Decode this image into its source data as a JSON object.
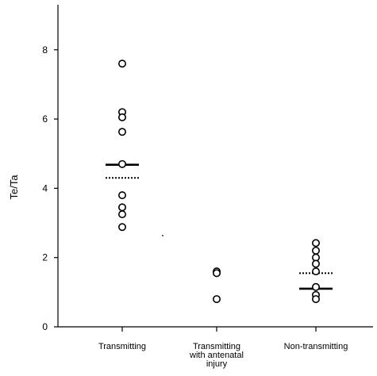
{
  "chart_data": {
    "type": "scatter",
    "ylabel": "Te/Ta",
    "ylim": [
      0,
      9.3
    ],
    "yticks": [
      "0",
      "2",
      "4",
      "6",
      "8"
    ],
    "grid": false,
    "categories": [
      [
        "Transmitting"
      ],
      [
        "Transmitting",
        "with antenatal",
        "injury"
      ],
      [
        "Non-transmitting"
      ]
    ],
    "groups": [
      {
        "values": [
          7.6,
          6.2,
          6.05,
          5.63,
          4.7,
          3.8,
          3.45,
          3.25,
          2.88
        ],
        "solid_line": 4.68,
        "dotted_line": 4.3
      },
      {
        "values": [
          1.6,
          1.55,
          0.8
        ],
        "solid_line": null,
        "dotted_line": null
      },
      {
        "values": [
          2.42,
          2.2,
          2.0,
          1.82,
          1.6,
          1.15,
          0.92,
          0.8
        ],
        "solid_line": 1.1,
        "dotted_line": 1.55
      }
    ]
  }
}
